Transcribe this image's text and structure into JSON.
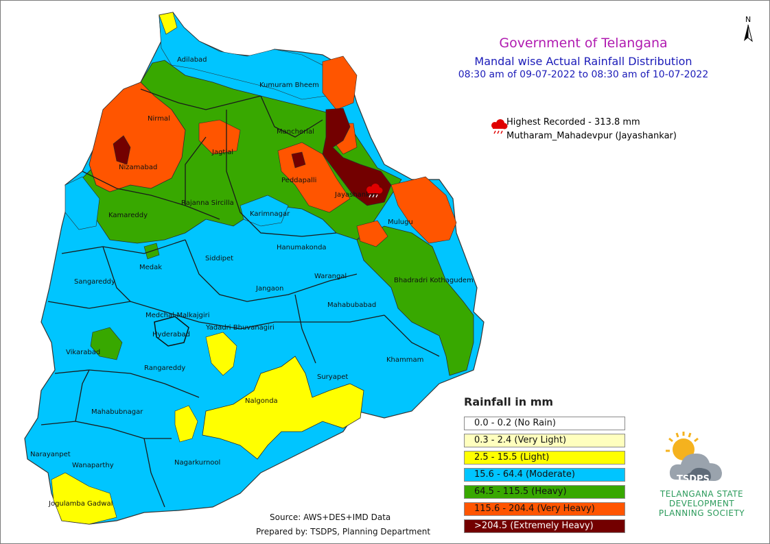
{
  "header": {
    "line1": "Government of Telangana",
    "line2": "Mandal wise Actual Rainfall Distribution",
    "line3": "08:30 am of 09-07-2022 to 08:30 am of 10-07-2022"
  },
  "north_arrow": {
    "label": "N",
    "icon": "north-arrow-icon"
  },
  "highest": {
    "line1": "Highest Recorded - 313.8 mm",
    "line2": "Mutharam_Mahadevpur (Jayashankar)",
    "icon": "rain-cloud-icon",
    "icon_color": "#e00000"
  },
  "legend": {
    "title": "Rainfall in mm",
    "items": [
      {
        "label": "0.0 - 0.2 (No Rain)",
        "color": "#ffffff"
      },
      {
        "label": "0.3 - 2.4 (Very Light)",
        "color": "#ffffbe"
      },
      {
        "label": "2.5 - 15.5 (Light)",
        "color": "#ffff00"
      },
      {
        "label": "15.6 - 64.4 (Moderate)",
        "color": "#00c5ff"
      },
      {
        "label": "64.5 - 115.5 (Heavy)",
        "color": "#38a800"
      },
      {
        "label": "115.6 - 204.4 (Very Heavy)",
        "color": "#ff5500"
      },
      {
        "label": ">204.5 (Extremely Heavy)",
        "color": "#730000"
      }
    ]
  },
  "districts": [
    "Adilabad",
    "Kumuram Bheem",
    "Nirmal",
    "Mancherial",
    "Jagtial",
    "Nizamabad",
    "Peddapalli",
    "Jayashankar",
    "Rajanna Sircilla",
    "Kamareddy",
    "Karimnagar",
    "Mulugu",
    "Hanumakonda",
    "Medak",
    "Siddipet",
    "Warangal",
    "Sangareddy",
    "Bhadradri Kothagudem",
    "Jangaon",
    "Mahabubabad",
    "Medchal-Malkajgiri",
    "Yadadri Bhuvanagiri",
    "Hyderabad",
    "Vikarabad",
    "Khammam",
    "Rangareddy",
    "Suryapet",
    "Nalgonda",
    "Mahabubnagar",
    "Narayanpet",
    "Wanaparthy",
    "Nagarkurnool",
    "Jogulamba Gadwal"
  ],
  "credits": {
    "source": "Source: AWS+DES+IMD Data",
    "prepared": "Prepared by: TSDPS, Planning Department"
  },
  "logo": {
    "short": "TSDPS",
    "name_line1": "TELANGANA STATE",
    "name_line2": "DEVELOPMENT",
    "name_line3": "PLANNING SOCIETY",
    "icon": "sun-cloud-logo-icon"
  }
}
